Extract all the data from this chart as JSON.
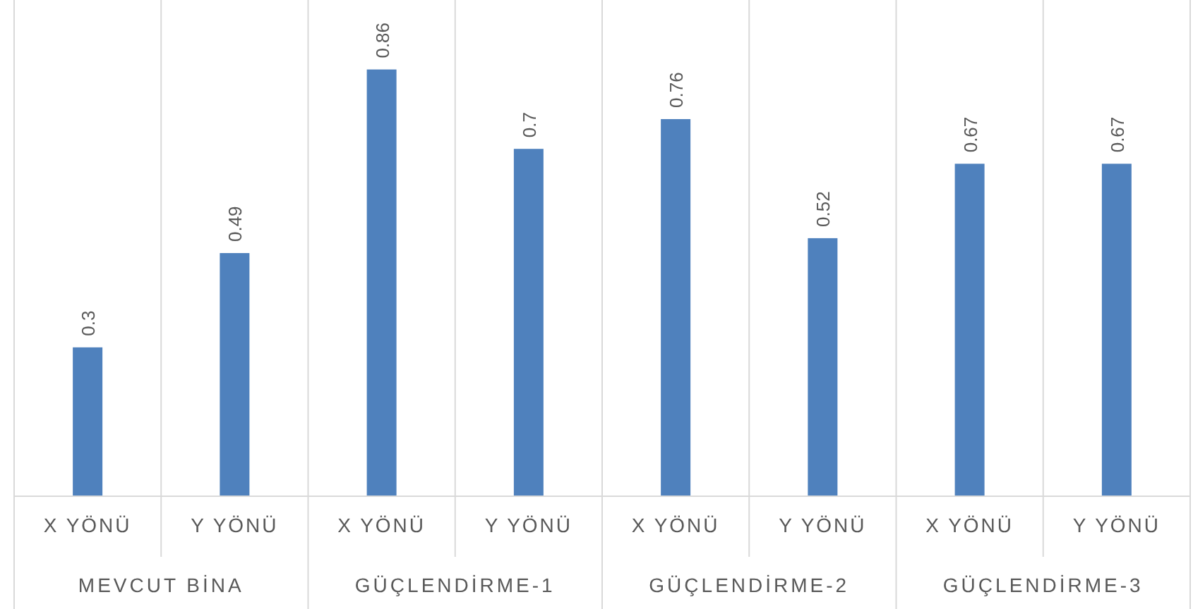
{
  "chart_data": {
    "type": "bar",
    "categories": [
      "X YÖNÜ",
      "Y YÖNÜ",
      "X YÖNÜ",
      "Y YÖNÜ",
      "X YÖNÜ",
      "Y YÖNÜ",
      "X YÖNÜ",
      "Y YÖNÜ"
    ],
    "values": [
      0.3,
      0.49,
      0.86,
      0.7,
      0.76,
      0.52,
      0.67,
      0.67
    ],
    "color": "#4f81bd",
    "ylim": [
      0,
      1
    ],
    "tick_labels": "x",
    "data_labels": true,
    "grid": "x",
    "annotations": [
      "MEVCUT BİNA",
      "GÜÇLENDİRME-1",
      "GÜÇLENDİRME-2",
      "GÜÇLENDİRME-3"
    ]
  }
}
